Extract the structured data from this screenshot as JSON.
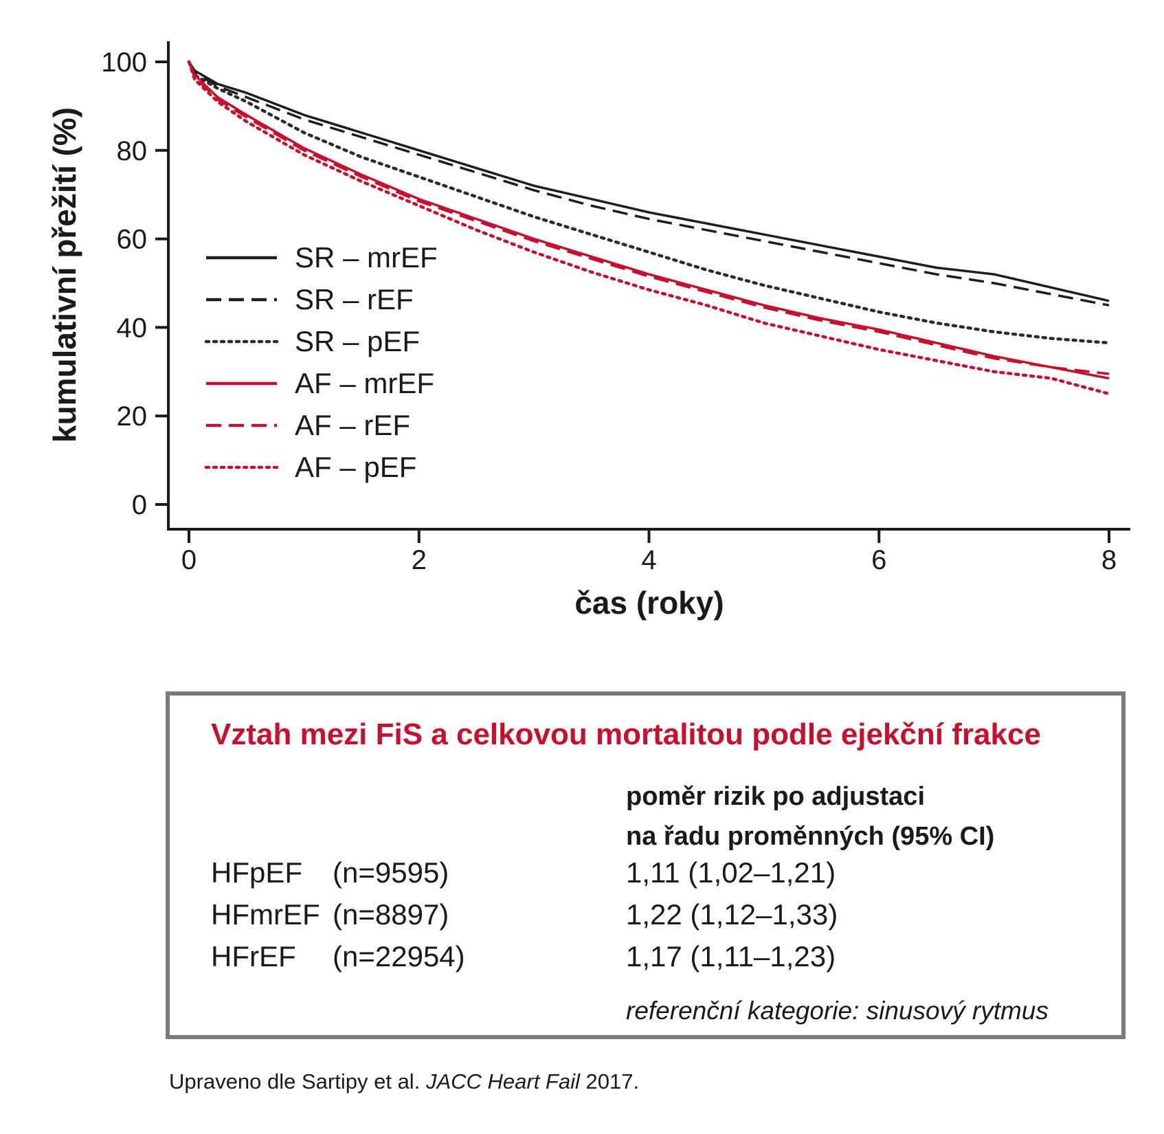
{
  "chart_data": {
    "type": "line",
    "xlabel": "čas (roky)",
    "ylabel": "kumulativní přežití (%)",
    "xlim": [
      0,
      8
    ],
    "ylim": [
      0,
      100
    ],
    "xticks": [
      "0",
      "2",
      "4",
      "6",
      "8"
    ],
    "yticks": [
      "0",
      "20",
      "40",
      "60",
      "80",
      "100"
    ],
    "grid": false,
    "legend_position": "left-center",
    "x": [
      0,
      0.05,
      0.25,
      0.5,
      1,
      1.5,
      2,
      2.5,
      3,
      3.5,
      4,
      4.5,
      5,
      5.5,
      6,
      6.5,
      7,
      7.5,
      8
    ],
    "series": [
      {
        "name": "SR – mrEF",
        "style": "solid",
        "color": "#1e1e1e",
        "values": [
          100,
          98,
          95,
          93,
          88,
          84,
          80,
          76,
          72,
          69,
          66,
          63.5,
          61,
          58.5,
          56,
          53.5,
          52,
          49,
          46
        ]
      },
      {
        "name": "SR – rEF",
        "style": "dashed",
        "color": "#1e1e1e",
        "values": [
          100,
          97.5,
          94.5,
          92,
          87,
          83,
          79,
          75,
          71,
          67.5,
          64.5,
          62,
          59.5,
          57,
          54.5,
          52,
          50,
          47.5,
          45
        ]
      },
      {
        "name": "SR – pEF",
        "style": "dotted",
        "color": "#2b2b2b",
        "values": [
          100,
          97,
          94,
          91,
          84,
          78.5,
          74,
          69.5,
          65,
          61,
          57,
          53,
          49.5,
          46.5,
          43.5,
          41,
          39,
          37.5,
          36.5
        ]
      },
      {
        "name": "AF – mrEF",
        "style": "solid",
        "color": "#c8102e",
        "values": [
          100,
          97,
          92,
          88,
          80.5,
          74.5,
          69,
          64.5,
          60,
          56,
          52,
          48.5,
          45,
          42,
          39.5,
          36.5,
          33.5,
          31,
          28.5
        ]
      },
      {
        "name": "AF – rEF",
        "style": "dashed",
        "color": "#c8102e",
        "values": [
          100,
          96.5,
          91.5,
          87.5,
          80,
          74,
          68.5,
          64,
          59.5,
          55.5,
          51.5,
          48,
          44.5,
          41.5,
          39,
          36,
          33,
          31,
          29.5
        ]
      },
      {
        "name": "AF – pEF",
        "style": "dotted",
        "color": "#c8102e",
        "values": [
          100,
          96,
          91,
          86.5,
          79,
          73,
          67.5,
          62,
          57,
          52.5,
          48.5,
          45,
          41,
          38,
          35,
          32.5,
          30,
          28.5,
          25
        ]
      }
    ]
  },
  "table": {
    "title": "Vztah mezi FiS a celkovou mortalitou podle ejekční frakce",
    "col_header_line1": "poměr rizik po adjustaci",
    "col_header_line2": "na řadu proměnných (95% CI)",
    "rows": [
      {
        "group": "HFpEF",
        "n": "(n=9595)",
        "hr": "1,11 (1,02–1,21)"
      },
      {
        "group": "HFmrEF",
        "n": "(n=8897)",
        "hr": "1,22 (1,12–1,33)"
      },
      {
        "group": "HFrEF",
        "n": "(n=22954)",
        "hr": "1,17 (1,11–1,23)"
      }
    ],
    "note": "referenční kategorie: sinusový rytmus"
  },
  "source": {
    "prefix": "Upraveno dle Sartipy et al. ",
    "journal": "JACC Heart Fail",
    "year": " 2017."
  }
}
